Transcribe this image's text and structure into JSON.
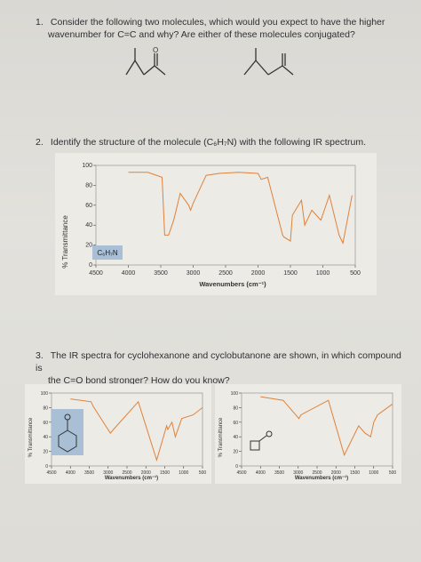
{
  "header_scrap": "",
  "q1": {
    "number": "1.",
    "line1": "Consider the following two molecules, which would you expect to have the higher",
    "line2": "wavenumber for C=C and why? Are either of these molecules conjugated?",
    "carbonyl_o": "O"
  },
  "q2": {
    "number": "2.",
    "text": "Identify the structure of the molecule (C₆H₇N) with the following IR spectrum.",
    "ylabel": "% Transmittance",
    "xlabel": "Wavenumbers (cm⁻¹)",
    "formula": "C₆H₇N",
    "y_ticks": [
      "100",
      "80",
      "60",
      "40",
      "20",
      "0"
    ],
    "x_ticks": [
      "4500",
      "4000",
      "3500",
      "3000",
      "2500",
      "2000",
      "1500",
      "1000",
      "500"
    ]
  },
  "q3": {
    "number": "3.",
    "line1": "The IR spectra for cyclohexanone and cyclobutanone are shown, in which compound is",
    "line2": "the C=O bond stronger? How do you know?",
    "left": {
      "ylabel": "% Transmittance",
      "xlabel": "Wavenumbers (cm⁻¹)",
      "y_ticks": [
        "100",
        "80",
        "60",
        "40",
        "20",
        "0"
      ],
      "x_ticks": [
        "4500",
        "4000",
        "3500",
        "3000",
        "2500",
        "2000",
        "1500",
        "1000",
        "500"
      ]
    },
    "right": {
      "ylabel": "% Transmittance",
      "xlabel": "Wavenumbers (cm⁻¹)",
      "y_ticks": [
        "100",
        "80",
        "60",
        "40",
        "20",
        "0"
      ],
      "x_ticks": [
        "4500",
        "4000",
        "3500",
        "3000",
        "2500",
        "2000",
        "1500",
        "1000",
        "500"
      ]
    }
  },
  "colors": {
    "spectrum": "#e0813a",
    "inset": "#a9bfd6"
  },
  "chart_data": [
    {
      "type": "line",
      "series": [
        {
          "x": [
            4000,
            3700,
            3480,
            3440,
            3380,
            3300,
            3200,
            3070,
            3040,
            3000,
            2800,
            2600,
            2300,
            2000,
            1950,
            1850,
            1620,
            1600,
            1500,
            1470,
            1330,
            1280,
            1170,
            1030,
            900,
            750,
            690,
            550
          ],
          "y": [
            93,
            93,
            88,
            30,
            30,
            45,
            72,
            60,
            55,
            62,
            90,
            92,
            93,
            92,
            86,
            88,
            30,
            28,
            24,
            50,
            65,
            40,
            55,
            45,
            70,
            30,
            22,
            70
          ]
        }
      ],
      "ylim": [
        0,
        100
      ],
      "xlim": [
        4500,
        500
      ]
    },
    {
      "type": "line",
      "series": [
        {
          "x": [
            4000,
            3450,
            3400,
            2940,
            2860,
            2200,
            1715,
            1450,
            1420,
            1310,
            1220,
            1120,
            1050,
            750,
            500
          ],
          "y": [
            92,
            88,
            82,
            45,
            50,
            88,
            8,
            55,
            50,
            60,
            40,
            55,
            65,
            70,
            80
          ]
        }
      ],
      "ylim": [
        0,
        100
      ],
      "xlim": [
        4500,
        500
      ]
    },
    {
      "type": "line",
      "series": [
        {
          "x": [
            4000,
            3400,
            2980,
            2930,
            2200,
            1780,
            1400,
            1230,
            1080,
            1000,
            900,
            500
          ],
          "y": [
            95,
            90,
            65,
            70,
            90,
            15,
            55,
            45,
            40,
            60,
            70,
            85
          ]
        }
      ],
      "ylim": [
        0,
        100
      ],
      "xlim": [
        4500,
        500
      ]
    }
  ]
}
